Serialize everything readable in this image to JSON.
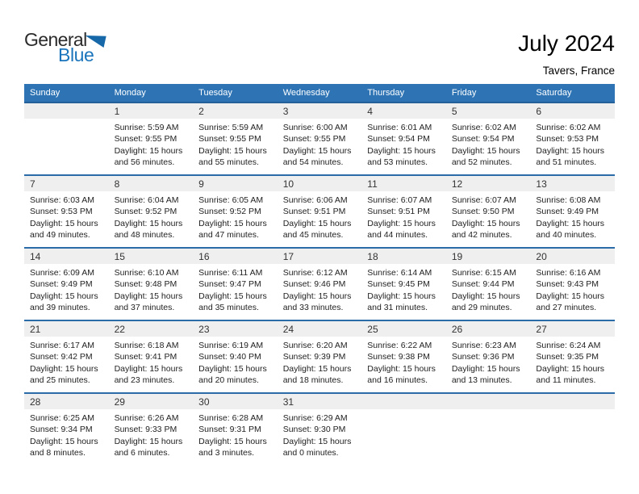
{
  "logo": {
    "part1": "General",
    "part2": "Blue"
  },
  "header": {
    "title": "July 2024",
    "subtitle": "Tavers, France"
  },
  "colors": {
    "header_bar": "#2e74b5",
    "week_divider": "#2a6ba8",
    "number_strip": "#efefef",
    "logo_blue": "#1b75bc",
    "logo_dark": "#2b2b2b"
  },
  "weekdays": [
    "Sunday",
    "Monday",
    "Tuesday",
    "Wednesday",
    "Thursday",
    "Friday",
    "Saturday"
  ],
  "weeks": [
    [
      {
        "day": "",
        "sunrise": "",
        "sunset": "",
        "daylight": ""
      },
      {
        "day": "1",
        "sunrise": "Sunrise: 5:59 AM",
        "sunset": "Sunset: 9:55 PM",
        "daylight": "Daylight: 15 hours and 56 minutes."
      },
      {
        "day": "2",
        "sunrise": "Sunrise: 5:59 AM",
        "sunset": "Sunset: 9:55 PM",
        "daylight": "Daylight: 15 hours and 55 minutes."
      },
      {
        "day": "3",
        "sunrise": "Sunrise: 6:00 AM",
        "sunset": "Sunset: 9:55 PM",
        "daylight": "Daylight: 15 hours and 54 minutes."
      },
      {
        "day": "4",
        "sunrise": "Sunrise: 6:01 AM",
        "sunset": "Sunset: 9:54 PM",
        "daylight": "Daylight: 15 hours and 53 minutes."
      },
      {
        "day": "5",
        "sunrise": "Sunrise: 6:02 AM",
        "sunset": "Sunset: 9:54 PM",
        "daylight": "Daylight: 15 hours and 52 minutes."
      },
      {
        "day": "6",
        "sunrise": "Sunrise: 6:02 AM",
        "sunset": "Sunset: 9:53 PM",
        "daylight": "Daylight: 15 hours and 51 minutes."
      }
    ],
    [
      {
        "day": "7",
        "sunrise": "Sunrise: 6:03 AM",
        "sunset": "Sunset: 9:53 PM",
        "daylight": "Daylight: 15 hours and 49 minutes."
      },
      {
        "day": "8",
        "sunrise": "Sunrise: 6:04 AM",
        "sunset": "Sunset: 9:52 PM",
        "daylight": "Daylight: 15 hours and 48 minutes."
      },
      {
        "day": "9",
        "sunrise": "Sunrise: 6:05 AM",
        "sunset": "Sunset: 9:52 PM",
        "daylight": "Daylight: 15 hours and 47 minutes."
      },
      {
        "day": "10",
        "sunrise": "Sunrise: 6:06 AM",
        "sunset": "Sunset: 9:51 PM",
        "daylight": "Daylight: 15 hours and 45 minutes."
      },
      {
        "day": "11",
        "sunrise": "Sunrise: 6:07 AM",
        "sunset": "Sunset: 9:51 PM",
        "daylight": "Daylight: 15 hours and 44 minutes."
      },
      {
        "day": "12",
        "sunrise": "Sunrise: 6:07 AM",
        "sunset": "Sunset: 9:50 PM",
        "daylight": "Daylight: 15 hours and 42 minutes."
      },
      {
        "day": "13",
        "sunrise": "Sunrise: 6:08 AM",
        "sunset": "Sunset: 9:49 PM",
        "daylight": "Daylight: 15 hours and 40 minutes."
      }
    ],
    [
      {
        "day": "14",
        "sunrise": "Sunrise: 6:09 AM",
        "sunset": "Sunset: 9:49 PM",
        "daylight": "Daylight: 15 hours and 39 minutes."
      },
      {
        "day": "15",
        "sunrise": "Sunrise: 6:10 AM",
        "sunset": "Sunset: 9:48 PM",
        "daylight": "Daylight: 15 hours and 37 minutes."
      },
      {
        "day": "16",
        "sunrise": "Sunrise: 6:11 AM",
        "sunset": "Sunset: 9:47 PM",
        "daylight": "Daylight: 15 hours and 35 minutes."
      },
      {
        "day": "17",
        "sunrise": "Sunrise: 6:12 AM",
        "sunset": "Sunset: 9:46 PM",
        "daylight": "Daylight: 15 hours and 33 minutes."
      },
      {
        "day": "18",
        "sunrise": "Sunrise: 6:14 AM",
        "sunset": "Sunset: 9:45 PM",
        "daylight": "Daylight: 15 hours and 31 minutes."
      },
      {
        "day": "19",
        "sunrise": "Sunrise: 6:15 AM",
        "sunset": "Sunset: 9:44 PM",
        "daylight": "Daylight: 15 hours and 29 minutes."
      },
      {
        "day": "20",
        "sunrise": "Sunrise: 6:16 AM",
        "sunset": "Sunset: 9:43 PM",
        "daylight": "Daylight: 15 hours and 27 minutes."
      }
    ],
    [
      {
        "day": "21",
        "sunrise": "Sunrise: 6:17 AM",
        "sunset": "Sunset: 9:42 PM",
        "daylight": "Daylight: 15 hours and 25 minutes."
      },
      {
        "day": "22",
        "sunrise": "Sunrise: 6:18 AM",
        "sunset": "Sunset: 9:41 PM",
        "daylight": "Daylight: 15 hours and 23 minutes."
      },
      {
        "day": "23",
        "sunrise": "Sunrise: 6:19 AM",
        "sunset": "Sunset: 9:40 PM",
        "daylight": "Daylight: 15 hours and 20 minutes."
      },
      {
        "day": "24",
        "sunrise": "Sunrise: 6:20 AM",
        "sunset": "Sunset: 9:39 PM",
        "daylight": "Daylight: 15 hours and 18 minutes."
      },
      {
        "day": "25",
        "sunrise": "Sunrise: 6:22 AM",
        "sunset": "Sunset: 9:38 PM",
        "daylight": "Daylight: 15 hours and 16 minutes."
      },
      {
        "day": "26",
        "sunrise": "Sunrise: 6:23 AM",
        "sunset": "Sunset: 9:36 PM",
        "daylight": "Daylight: 15 hours and 13 minutes."
      },
      {
        "day": "27",
        "sunrise": "Sunrise: 6:24 AM",
        "sunset": "Sunset: 9:35 PM",
        "daylight": "Daylight: 15 hours and 11 minutes."
      }
    ],
    [
      {
        "day": "28",
        "sunrise": "Sunrise: 6:25 AM",
        "sunset": "Sunset: 9:34 PM",
        "daylight": "Daylight: 15 hours and 8 minutes."
      },
      {
        "day": "29",
        "sunrise": "Sunrise: 6:26 AM",
        "sunset": "Sunset: 9:33 PM",
        "daylight": "Daylight: 15 hours and 6 minutes."
      },
      {
        "day": "30",
        "sunrise": "Sunrise: 6:28 AM",
        "sunset": "Sunset: 9:31 PM",
        "daylight": "Daylight: 15 hours and 3 minutes."
      },
      {
        "day": "31",
        "sunrise": "Sunrise: 6:29 AM",
        "sunset": "Sunset: 9:30 PM",
        "daylight": "Daylight: 15 hours and 0 minutes."
      },
      {
        "day": "",
        "sunrise": "",
        "sunset": "",
        "daylight": ""
      },
      {
        "day": "",
        "sunrise": "",
        "sunset": "",
        "daylight": ""
      },
      {
        "day": "",
        "sunrise": "",
        "sunset": "",
        "daylight": ""
      }
    ]
  ]
}
